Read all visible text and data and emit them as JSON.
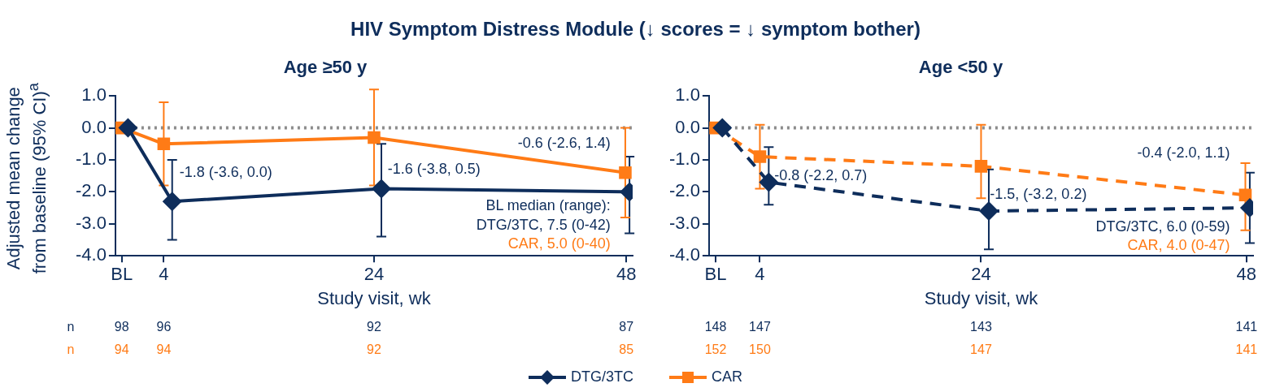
{
  "chart_data": [
    {
      "type": "line",
      "title": "HIV Symptom Distress Module (↓ scores = ↓ symptom bother)",
      "subtitle": "Age ≥50 y",
      "xlabel": "Study visit, wk",
      "ylabel": "Adjusted mean change from baseline (95% CI)$^{a}$",
      "xlim": [
        -0.6,
        48.6
      ],
      "xticks": [
        {
          "value": 0,
          "label": "BL"
        },
        4,
        24,
        48
      ],
      "ylim": [
        -4,
        1
      ],
      "yticks": [
        {
          "value": -4,
          "label": "-4.0"
        },
        {
          "value": -3,
          "label": "-3.0"
        },
        {
          "value": -2,
          "label": "-2.0"
        },
        {
          "value": -1,
          "label": "-1.0"
        },
        {
          "value": 0,
          "label": "0.0"
        },
        {
          "value": 1,
          "label": "1.0"
        }
      ],
      "grid": false,
      "legend": "bottom",
      "line_style": "solid",
      "ref_lines": [
        {
          "axis": "y",
          "value": 0,
          "color": "#8c8c8c",
          "line_style": "dotted"
        }
      ],
      "series": [
        {
          "name": "DTG/3TC",
          "color": "#0e2d5b",
          "marker": "diamond",
          "x": [
            0.6,
            4.8,
            24.7,
            48.3
          ],
          "values": [
            0,
            -2.3,
            -1.9,
            -2.0
          ],
          "errors": [
            null,
            [
              -3.5,
              -1.0
            ],
            [
              -3.4,
              -0.5
            ],
            [
              -3.3,
              -0.9
            ]
          ]
        },
        {
          "name": "CAR",
          "color": "#ff7b16",
          "marker": "square",
          "x": [
            0,
            4,
            24,
            47.9
          ],
          "values": [
            0,
            -0.5,
            -0.3,
            -1.4
          ],
          "errors": [
            null,
            [
              -1.8,
              0.8
            ],
            [
              -1.8,
              1.2
            ],
            [
              -2.8,
              0.0
            ]
          ]
        }
      ],
      "annotations": [
        "-1.8 (-3.6, 0.0)",
        "-1.6 (-3.8, 0.5)",
        "-0.6 (-2.6, 1.4)",
        "BL median (range):",
        "DTG/3TC, 7.5 (0-42)",
        "CAR, 5.0 (0-40)",
        "n 98 96 92 87",
        "n 94 94 92 85"
      ]
    },
    {
      "type": "line",
      "title": "Age <50 y",
      "xlabel": "Study visit, wk",
      "xlim": [
        -0.6,
        48.6
      ],
      "xticks": [
        {
          "value": 0,
          "label": "BL"
        },
        4,
        24,
        48
      ],
      "ylim": [
        -4,
        1
      ],
      "yticks": [
        {
          "value": -4,
          "label": "-4.0"
        },
        {
          "value": -3,
          "label": "-3.0"
        },
        {
          "value": -2,
          "label": "-2.0"
        },
        {
          "value": -1,
          "label": "-1.0"
        },
        {
          "value": 0,
          "label": "0.0"
        },
        {
          "value": 1,
          "label": "1.0"
        }
      ],
      "grid": false,
      "line_style": "dashed",
      "ref_lines": [
        {
          "axis": "y",
          "value": 0,
          "color": "#8c8c8c",
          "line_style": "dotted"
        }
      ],
      "series": [
        {
          "color": "#0e2d5b",
          "marker": "diamond",
          "x": [
            0.6,
            4.8,
            24.7,
            48.3
          ],
          "values": [
            0,
            -1.7,
            -2.6,
            -2.5
          ],
          "errors": [
            null,
            [
              -2.4,
              -0.6
            ],
            [
              -3.8,
              -1.3
            ],
            [
              -3.6,
              -1.4
            ]
          ]
        },
        {
          "color": "#ff7b16",
          "marker": "square",
          "x": [
            0,
            4,
            24,
            47.9
          ],
          "values": [
            0,
            -0.9,
            -1.2,
            -2.1
          ],
          "errors": [
            null,
            [
              -1.9,
              0.1
            ],
            [
              -2.2,
              0.1
            ],
            [
              -3.2,
              -1.1
            ]
          ]
        }
      ],
      "annotations": [
        "-0.8 (-2.2, 0.7)",
        "-1.5, (-3.2, 0.2)",
        "-0.4 (-2.0, 1.1)",
        "DTG/3TC, 6.0 (0-59)",
        "CAR, 4.0 (0-47)",
        "148 147 143 141",
        "152 150 147 141"
      ]
    }
  ]
}
